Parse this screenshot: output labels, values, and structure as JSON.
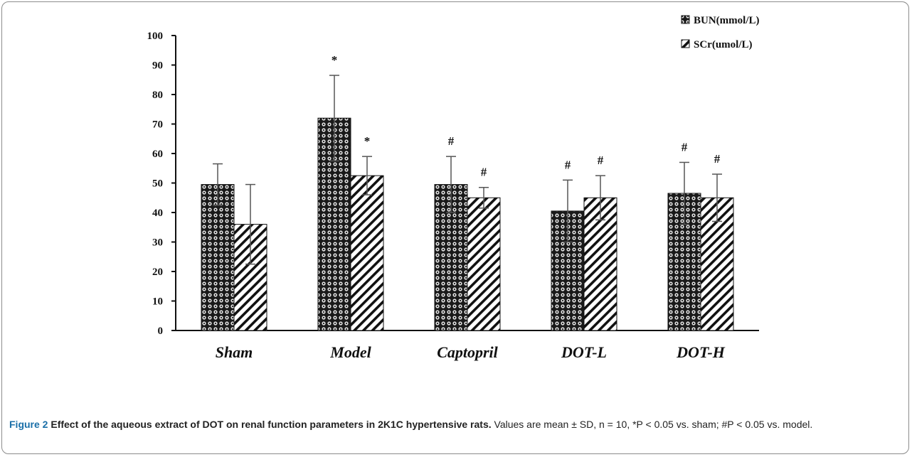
{
  "caption": {
    "label": "Figure 2",
    "title": "Effect of the aqueous extract of DOT on renal function parameters in 2K1C hypertensive rats.",
    "text": "Values are mean ± SD, n = 10, *P < 0.05 vs. sham; #P < 0.05 vs. model."
  },
  "chart_data": {
    "type": "bar",
    "categories": [
      "Sham",
      "Model",
      "Captopril",
      "DOT-L",
      "DOT-H"
    ],
    "series": [
      {
        "name": "BUN(mmol/L)",
        "values": [
          49.5,
          72,
          49.5,
          40.5,
          46.5
        ],
        "errors": [
          7,
          14.5,
          9.5,
          10.5,
          10.5
        ],
        "marks": [
          "",
          "*",
          "#",
          "#",
          "#"
        ],
        "pattern": "dotted-grid"
      },
      {
        "name": "SCr(umol/L)",
        "values": [
          36,
          52.5,
          45,
          45,
          45
        ],
        "errors": [
          13.5,
          6.5,
          3.5,
          7.5,
          8
        ],
        "marks": [
          "",
          "*",
          "#",
          "#",
          "#"
        ],
        "pattern": "diagonal-hatch"
      }
    ],
    "ylim": [
      0,
      100
    ],
    "yticks": [
      "0",
      "10",
      "20",
      "30",
      "40",
      "50",
      "60",
      "70",
      "80",
      "90",
      "100"
    ],
    "legend": "top-right",
    "grid": false
  }
}
